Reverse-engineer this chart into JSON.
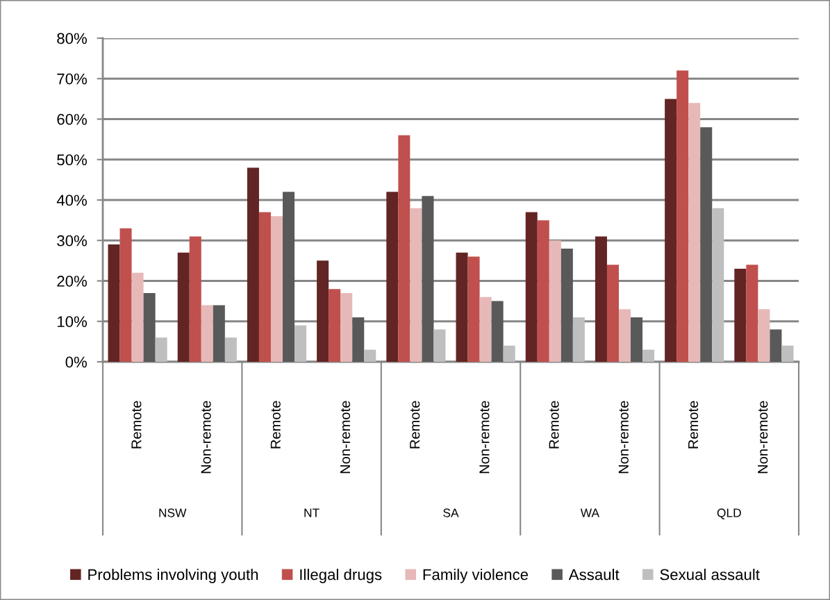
{
  "chart_data": {
    "type": "bar",
    "categories": [
      "Remote",
      "Non-remote",
      "Remote",
      "Non-remote",
      "Remote",
      "Non-remote",
      "Remote",
      "Non-remote",
      "Remote",
      "Non-remote"
    ],
    "annotations": [
      "NSW",
      "NT",
      "SA",
      "WA",
      "QLD"
    ],
    "series": [
      {
        "name": "Problems involving youth",
        "color": "#632523",
        "values": [
          29,
          27,
          48,
          25,
          42,
          27,
          37,
          31,
          65,
          23
        ]
      },
      {
        "name": "Illegal drugs",
        "color": "#c0504d",
        "values": [
          33,
          31,
          37,
          18,
          56,
          26,
          35,
          24,
          72,
          24
        ]
      },
      {
        "name": "Family violence",
        "color": "#e6b9b8",
        "values": [
          22,
          14,
          36,
          17,
          38,
          16,
          30,
          13,
          64,
          13
        ]
      },
      {
        "name": "Assault",
        "color": "#595959",
        "values": [
          17,
          14,
          42,
          11,
          41,
          15,
          28,
          11,
          58,
          8
        ]
      },
      {
        "name": "Sexual assault",
        "color": "#bfbfbf",
        "values": [
          6,
          6,
          9,
          3,
          8,
          4,
          11,
          3,
          38,
          4
        ]
      }
    ],
    "ylim": [
      0,
      80
    ],
    "yticks": [
      {
        "value": 0,
        "label": "0%"
      },
      {
        "value": 10,
        "label": "10%"
      },
      {
        "value": 20,
        "label": "20%"
      },
      {
        "value": 30,
        "label": "30%"
      },
      {
        "value": 40,
        "label": "40%"
      },
      {
        "value": 50,
        "label": "50%"
      },
      {
        "value": 60,
        "label": "60%"
      },
      {
        "value": 70,
        "label": "70%"
      },
      {
        "value": 80,
        "label": "80%"
      }
    ],
    "grid": "y",
    "legend": "bottom"
  }
}
